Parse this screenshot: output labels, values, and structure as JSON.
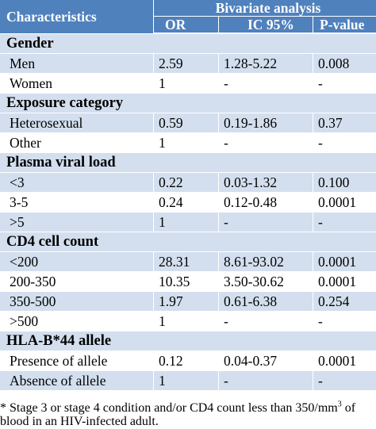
{
  "table": {
    "header": {
      "characteristics": "Characteristics",
      "group": "Bivariate analysis",
      "columns": [
        "OR",
        "IC 95%",
        "P-value"
      ]
    },
    "sections": [
      {
        "title": "Gender",
        "rows": [
          {
            "label": "Men",
            "or": "2.59",
            "ic": "1.28-5.22",
            "p": "0.008",
            "shade": true
          },
          {
            "label": "Women",
            "or": "1",
            "ic": "-",
            "p": "-",
            "shade": false
          }
        ]
      },
      {
        "title": "Exposure category",
        "rows": [
          {
            "label": "Heterosexual",
            "or": "0.59",
            "ic": "0.19-1.86",
            "p": "0.37",
            "shade": true
          },
          {
            "label": "Other",
            "or": "1",
            "ic": "-",
            "p": "-",
            "shade": false
          }
        ]
      },
      {
        "title": "Plasma viral load",
        "rows": [
          {
            "label": "<3",
            "or": "0.22",
            "ic": "0.03-1.32",
            "p": "0.100",
            "shade": true
          },
          {
            "label": "3-5",
            "or": "0.24",
            "ic": "0.12-0.48",
            "p": "0.0001",
            "shade": false
          },
          {
            "label": ">5",
            "or": "1",
            "ic": "-",
            "p": "-",
            "shade": true
          }
        ]
      },
      {
        "title": "CD4 cell count",
        "rows": [
          {
            "label": "<200",
            "or": "28.31",
            "ic": "8.61-93.02",
            "p": "0.0001",
            "shade": true
          },
          {
            "label": "200-350",
            "or": "10.35",
            "ic": "3.50-30.62",
            "p": "0.0001",
            "shade": false
          },
          {
            "label": "350-500",
            "or": "1.97",
            "ic": "0.61-6.38",
            "p": "0.254",
            "shade": true
          },
          {
            "label": ">500",
            "or": "1",
            "ic": "-",
            "p": "-",
            "shade": false
          }
        ]
      },
      {
        "title": "HLA-B*44 allele",
        "rows": [
          {
            "label": "Presence of allele",
            "or": "0.12",
            "ic": "0.04-0.37",
            "p": "0.0001",
            "shade": false
          },
          {
            "label": "Absence of allele",
            "or": "1",
            "ic": "-",
            "p": "-",
            "shade": true
          }
        ]
      }
    ]
  },
  "footnote": {
    "before_sup": "* Stage 3 or stage 4 condition and/or CD4 count less than 350/mm",
    "sup": "3",
    "after_sup": " of blood in an HIV-infected adult."
  },
  "colors": {
    "header_bg": "#4f81bd",
    "shade_bg": "#d3dfee",
    "header_text": "#ffffff"
  }
}
